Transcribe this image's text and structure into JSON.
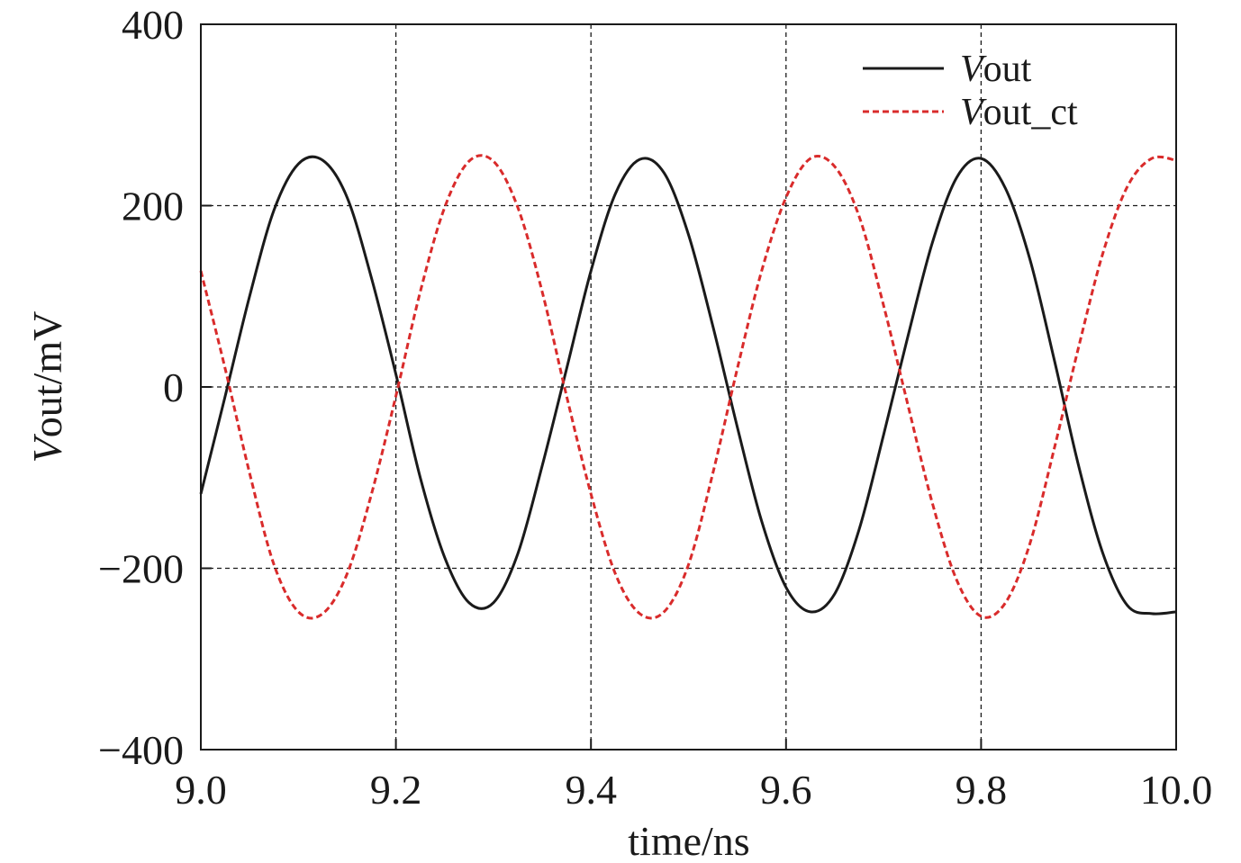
{
  "chart_data": {
    "type": "line",
    "title": "",
    "xlabel": "time/ns",
    "ylabel": {
      "italic": "V",
      "rest": "out/mV"
    },
    "xlim": [
      9.0,
      10.0
    ],
    "ylim": [
      -400,
      400
    ],
    "xticks": [
      9.0,
      9.2,
      9.4,
      9.6,
      9.8,
      10.0
    ],
    "xtick_labels": [
      "9.0",
      "9.2",
      "9.4",
      "9.6",
      "9.8",
      "10.0"
    ],
    "yticks": [
      -400,
      -200,
      0,
      200,
      400
    ],
    "ytick_labels": [
      "−400",
      "−200",
      "0",
      "200",
      "400"
    ],
    "grid": true,
    "legend_position": "top-right",
    "series": [
      {
        "name": {
          "italic": "V",
          "rest": "out"
        },
        "color": "#1a1a1a",
        "style": "solid",
        "x": [
          9.0,
          9.025,
          9.05,
          9.075,
          9.1,
          9.125,
          9.15,
          9.175,
          9.2,
          9.225,
          9.25,
          9.275,
          9.3,
          9.325,
          9.35,
          9.375,
          9.4,
          9.425,
          9.45,
          9.475,
          9.5,
          9.525,
          9.55,
          9.575,
          9.6,
          9.625,
          9.65,
          9.675,
          9.7,
          9.725,
          9.75,
          9.775,
          9.8,
          9.825,
          9.85,
          9.875,
          9.9,
          9.925,
          9.95,
          9.975,
          10.0
        ],
        "y": [
          -118,
          -10,
          100,
          195,
          246,
          250,
          209,
          120,
          14,
          -100,
          -188,
          -238,
          -238,
          -184,
          -87,
          20,
          128,
          213,
          251,
          236,
          168,
          67,
          -44,
          -148,
          -221,
          -248,
          -228,
          -157,
          -53,
          56,
          159,
          231,
          252,
          219,
          141,
          30,
          -87,
          -184,
          -241,
          -250,
          -248
        ]
      },
      {
        "name": {
          "italic": "V",
          "rest": "out_ct"
        },
        "color": "#d92b2b",
        "style": "dashed",
        "x": [
          9.0,
          9.025,
          9.05,
          9.075,
          9.1,
          9.125,
          9.15,
          9.175,
          9.2,
          9.225,
          9.25,
          9.275,
          9.3,
          9.325,
          9.35,
          9.375,
          9.4,
          9.425,
          9.45,
          9.475,
          9.5,
          9.525,
          9.55,
          9.575,
          9.6,
          9.625,
          9.65,
          9.675,
          9.7,
          9.725,
          9.75,
          9.775,
          9.8,
          9.825,
          9.85,
          9.875,
          9.9,
          9.925,
          9.95,
          9.975,
          10.0
        ],
        "y": [
          128,
          20,
          -95,
          -196,
          -248,
          -250,
          -206,
          -118,
          -10,
          105,
          198,
          249,
          249,
          198,
          105,
          -10,
          -118,
          -206,
          -250,
          -248,
          -196,
          -95,
          20,
          128,
          209,
          252,
          243,
          188,
          90,
          -20,
          -128,
          -213,
          -253,
          -238,
          -173,
          -68,
          44,
          148,
          221,
          252,
          250
        ]
      }
    ]
  }
}
